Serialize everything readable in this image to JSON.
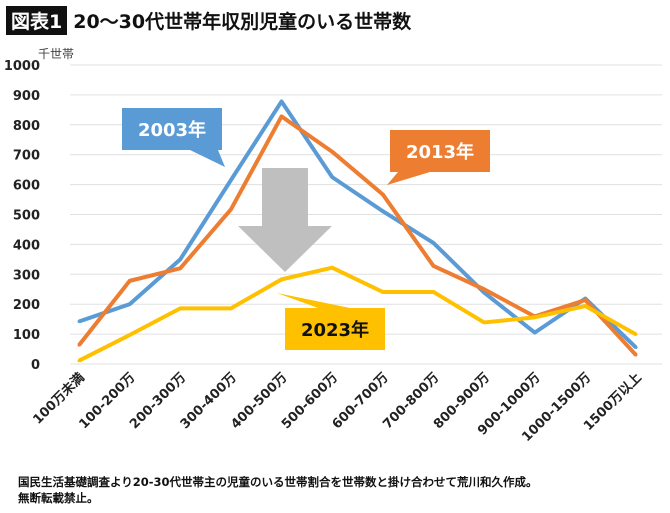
{
  "header": {
    "badge": "図表1",
    "title": "20〜30代世帯年収別児童のいる世帯数"
  },
  "footnote": [
    "国民生活基礎調査より20-30代世帯主の児童のいる世帯割合を世帯数と掛け合わせて荒川和久作成。",
    "無断転載禁止。"
  ],
  "chart_data": {
    "type": "line",
    "title": "20〜30代世帯年収別児童のいる世帯数",
    "ylabel": "千世帯",
    "ylim": [
      0,
      1000
    ],
    "yticks": [
      0,
      100,
      200,
      300,
      400,
      500,
      600,
      700,
      800,
      900,
      1000
    ],
    "grid": true,
    "categories": [
      "100万未満",
      "100-200万",
      "200-300万",
      "300-400万",
      "400-500万",
      "500-600万",
      "600-700万",
      "700-800万",
      "800-900万",
      "900-1000万",
      "1000-1500万",
      "1500万以上"
    ],
    "series": [
      {
        "name": "2003年",
        "color": "#5b9bd5",
        "values": [
          142,
          200,
          350,
          615,
          878,
          625,
          511,
          405,
          239,
          105,
          219,
          55
        ]
      },
      {
        "name": "2013年",
        "color": "#ed7d31",
        "values": [
          63,
          278,
          320,
          517,
          828,
          710,
          567,
          328,
          250,
          159,
          214,
          30
        ]
      },
      {
        "name": "2023年",
        "color": "#ffc000",
        "values": [
          11,
          97,
          186,
          186,
          283,
          322,
          241,
          241,
          139,
          156,
          194,
          99
        ]
      }
    ],
    "annotations": [
      "downward arrow (gray) from 2003/2013 peak toward 2023"
    ]
  }
}
